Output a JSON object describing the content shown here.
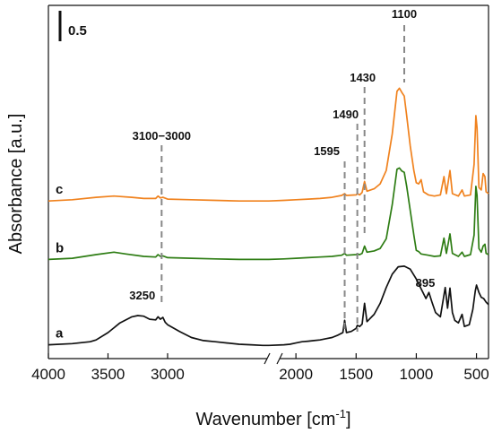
{
  "chart_data": {
    "type": "line",
    "xlabel": "Wavenumber [cm",
    "xlabel_sup": "-1",
    "xlabel_end": "]",
    "ylabel": "Absorbance [a.u.]",
    "x_axis": {
      "reversed": true,
      "broken": true,
      "segments": [
        [
          4000,
          2150
        ],
        [
          2150,
          400
        ]
      ],
      "ticks": [
        4000,
        3500,
        3000,
        2000,
        1500,
        1000,
        500
      ]
    },
    "scale_bar_label": "0.5",
    "annotations": [
      {
        "label": "1100",
        "x": 1100
      },
      {
        "label": "1430",
        "x": 1430
      },
      {
        "label": "1490",
        "x": 1490
      },
      {
        "label": "1595",
        "x": 1595
      },
      {
        "label": "3100−3000",
        "x": 3050
      },
      {
        "label": "3250",
        "x": 3250
      },
      {
        "label": "895",
        "x": 895
      }
    ],
    "series": [
      {
        "label": "a",
        "color": "#111111",
        "baseline": 0.0,
        "points": [
          [
            4000,
            0.02
          ],
          [
            3800,
            0.04
          ],
          [
            3650,
            0.07
          ],
          [
            3600,
            0.1
          ],
          [
            3500,
            0.22
          ],
          [
            3400,
            0.38
          ],
          [
            3300,
            0.48
          ],
          [
            3250,
            0.5
          ],
          [
            3200,
            0.49
          ],
          [
            3150,
            0.44
          ],
          [
            3100,
            0.43
          ],
          [
            3080,
            0.48
          ],
          [
            3060,
            0.44
          ],
          [
            3040,
            0.47
          ],
          [
            3020,
            0.39
          ],
          [
            3000,
            0.35
          ],
          [
            2900,
            0.24
          ],
          [
            2800,
            0.14
          ],
          [
            2700,
            0.09
          ],
          [
            2600,
            0.07
          ],
          [
            2500,
            0.05
          ],
          [
            2400,
            0.03
          ],
          [
            2300,
            0.02
          ],
          [
            2200,
            0.01
          ],
          [
            2150,
            0.01
          ],
          [
            2100,
            0.02
          ],
          [
            2050,
            0.03
          ],
          [
            2000,
            0.05
          ],
          [
            1950,
            0.07
          ],
          [
            1900,
            0.08
          ],
          [
            1850,
            0.09
          ],
          [
            1800,
            0.1
          ],
          [
            1750,
            0.12
          ],
          [
            1700,
            0.14
          ],
          [
            1650,
            0.18
          ],
          [
            1610,
            0.22
          ],
          [
            1595,
            0.42
          ],
          [
            1580,
            0.22
          ],
          [
            1540,
            0.24
          ],
          [
            1500,
            0.29
          ],
          [
            1490,
            0.34
          ],
          [
            1470,
            0.32
          ],
          [
            1450,
            0.36
          ],
          [
            1430,
            0.7
          ],
          [
            1410,
            0.4
          ],
          [
            1350,
            0.52
          ],
          [
            1300,
            0.7
          ],
          [
            1250,
            0.96
          ],
          [
            1200,
            1.18
          ],
          [
            1150,
            1.3
          ],
          [
            1100,
            1.31
          ],
          [
            1050,
            1.26
          ],
          [
            1000,
            1.1
          ],
          [
            950,
            0.9
          ],
          [
            920,
            0.78
          ],
          [
            895,
            0.88
          ],
          [
            870,
            0.72
          ],
          [
            840,
            0.55
          ],
          [
            800,
            0.48
          ],
          [
            760,
            0.96
          ],
          [
            740,
            0.62
          ],
          [
            720,
            0.95
          ],
          [
            700,
            0.55
          ],
          [
            680,
            0.42
          ],
          [
            650,
            0.38
          ],
          [
            620,
            0.52
          ],
          [
            600,
            0.32
          ],
          [
            560,
            0.35
          ],
          [
            530,
            0.6
          ],
          [
            510,
            0.9
          ],
          [
            500,
            1.0
          ],
          [
            480,
            0.88
          ],
          [
            460,
            0.8
          ],
          [
            440,
            0.78
          ],
          [
            420,
            0.72
          ],
          [
            400,
            0.68
          ]
        ]
      },
      {
        "label": "b",
        "color": "#2e7d14",
        "baseline": 1.42,
        "points": [
          [
            4000,
            0.0
          ],
          [
            3800,
            0.02
          ],
          [
            3600,
            0.08
          ],
          [
            3450,
            0.12
          ],
          [
            3350,
            0.09
          ],
          [
            3200,
            0.05
          ],
          [
            3100,
            0.04
          ],
          [
            3080,
            0.08
          ],
          [
            3060,
            0.05
          ],
          [
            3040,
            0.06
          ],
          [
            3000,
            0.03
          ],
          [
            2800,
            0.02
          ],
          [
            2600,
            0.01
          ],
          [
            2400,
            0.0
          ],
          [
            2150,
            0.0
          ],
          [
            2100,
            0.01
          ],
          [
            2000,
            0.02
          ],
          [
            1900,
            0.03
          ],
          [
            1800,
            0.04
          ],
          [
            1700,
            0.05
          ],
          [
            1620,
            0.07
          ],
          [
            1595,
            0.1
          ],
          [
            1580,
            0.07
          ],
          [
            1500,
            0.08
          ],
          [
            1490,
            0.09
          ],
          [
            1470,
            0.08
          ],
          [
            1450,
            0.1
          ],
          [
            1430,
            0.22
          ],
          [
            1410,
            0.12
          ],
          [
            1350,
            0.14
          ],
          [
            1300,
            0.18
          ],
          [
            1250,
            0.34
          ],
          [
            1200,
            0.9
          ],
          [
            1160,
            1.48
          ],
          [
            1140,
            1.5
          ],
          [
            1120,
            1.45
          ],
          [
            1100,
            1.43
          ],
          [
            1080,
            1.2
          ],
          [
            1050,
            0.8
          ],
          [
            1020,
            0.4
          ],
          [
            1000,
            0.15
          ],
          [
            980,
            0.13
          ],
          [
            960,
            0.09
          ],
          [
            900,
            0.07
          ],
          [
            850,
            0.05
          ],
          [
            800,
            0.06
          ],
          [
            770,
            0.35
          ],
          [
            750,
            0.1
          ],
          [
            720,
            0.42
          ],
          [
            700,
            0.1
          ],
          [
            650,
            0.05
          ],
          [
            620,
            0.12
          ],
          [
            600,
            0.05
          ],
          [
            550,
            0.08
          ],
          [
            520,
            0.4
          ],
          [
            505,
            1.2
          ],
          [
            495,
            1.05
          ],
          [
            480,
            0.18
          ],
          [
            460,
            0.12
          ],
          [
            445,
            0.22
          ],
          [
            430,
            0.25
          ],
          [
            420,
            0.1
          ],
          [
            400,
            0.08
          ]
        ]
      },
      {
        "label": "c",
        "color": "#f0821e",
        "baseline": 2.38,
        "points": [
          [
            4000,
            0.0
          ],
          [
            3800,
            0.02
          ],
          [
            3600,
            0.06
          ],
          [
            3450,
            0.08
          ],
          [
            3300,
            0.06
          ],
          [
            3200,
            0.04
          ],
          [
            3100,
            0.04
          ],
          [
            3080,
            0.08
          ],
          [
            3060,
            0.05
          ],
          [
            3040,
            0.06
          ],
          [
            3000,
            0.03
          ],
          [
            2800,
            0.02
          ],
          [
            2600,
            0.01
          ],
          [
            2400,
            0.0
          ],
          [
            2150,
            0.0
          ],
          [
            2100,
            0.01
          ],
          [
            2000,
            0.02
          ],
          [
            1900,
            0.03
          ],
          [
            1800,
            0.04
          ],
          [
            1700,
            0.06
          ],
          [
            1620,
            0.09
          ],
          [
            1595,
            0.12
          ],
          [
            1580,
            0.09
          ],
          [
            1500,
            0.1
          ],
          [
            1490,
            0.12
          ],
          [
            1470,
            0.1
          ],
          [
            1450,
            0.14
          ],
          [
            1430,
            0.32
          ],
          [
            1410,
            0.16
          ],
          [
            1350,
            0.2
          ],
          [
            1300,
            0.28
          ],
          [
            1250,
            0.5
          ],
          [
            1200,
            1.1
          ],
          [
            1160,
            1.8
          ],
          [
            1140,
            1.85
          ],
          [
            1120,
            1.78
          ],
          [
            1100,
            1.72
          ],
          [
            1080,
            1.4
          ],
          [
            1050,
            0.9
          ],
          [
            1020,
            0.5
          ],
          [
            1000,
            0.3
          ],
          [
            980,
            0.28
          ],
          [
            960,
            0.35
          ],
          [
            940,
            0.15
          ],
          [
            900,
            0.1
          ],
          [
            850,
            0.08
          ],
          [
            800,
            0.1
          ],
          [
            770,
            0.4
          ],
          [
            750,
            0.12
          ],
          [
            720,
            0.5
          ],
          [
            700,
            0.12
          ],
          [
            650,
            0.08
          ],
          [
            620,
            0.18
          ],
          [
            600,
            0.08
          ],
          [
            550,
            0.1
          ],
          [
            520,
            0.6
          ],
          [
            505,
            1.4
          ],
          [
            495,
            1.2
          ],
          [
            480,
            0.22
          ],
          [
            460,
            0.18
          ],
          [
            445,
            0.45
          ],
          [
            430,
            0.4
          ],
          [
            420,
            0.15
          ],
          [
            400,
            0.12
          ]
        ]
      }
    ]
  }
}
